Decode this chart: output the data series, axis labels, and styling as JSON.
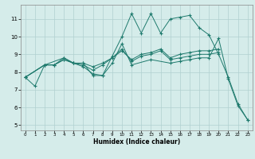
{
  "xlabel": "Humidex (Indice chaleur)",
  "background_color": "#d5ecea",
  "grid_color": "#b0d0d0",
  "line_color": "#1e7a6d",
  "xlim": [
    -0.5,
    23.5
  ],
  "ylim": [
    4.7,
    11.8
  ],
  "xticks": [
    0,
    1,
    2,
    3,
    4,
    5,
    6,
    7,
    8,
    9,
    10,
    11,
    12,
    13,
    14,
    15,
    16,
    17,
    18,
    19,
    20,
    21,
    22,
    23
  ],
  "yticks": [
    5,
    6,
    7,
    8,
    9,
    10,
    11
  ],
  "series1_x": [
    0,
    1,
    2,
    3,
    4,
    5,
    6,
    7,
    8,
    9,
    10,
    11,
    12,
    13,
    14,
    15,
    16,
    17,
    18,
    19,
    20,
    21,
    22,
    23
  ],
  "series1_y": [
    7.7,
    7.2,
    8.4,
    8.4,
    8.7,
    8.5,
    8.5,
    7.8,
    7.8,
    8.9,
    10.0,
    11.3,
    10.2,
    11.3,
    10.2,
    11.0,
    11.1,
    11.2,
    10.5,
    10.1,
    9.0,
    7.7,
    6.2,
    5.3
  ],
  "series2_x": [
    0,
    2,
    3,
    4,
    5,
    6,
    7,
    8,
    9,
    10,
    11,
    12,
    13,
    14,
    15,
    16,
    17,
    18,
    19,
    20
  ],
  "series2_y": [
    7.7,
    8.4,
    8.4,
    8.7,
    8.5,
    8.5,
    8.3,
    8.5,
    8.8,
    9.2,
    8.7,
    9.0,
    9.1,
    9.3,
    8.8,
    9.0,
    9.1,
    9.2,
    9.2,
    9.3
  ],
  "series3_x": [
    0,
    2,
    3,
    4,
    5,
    6,
    7,
    8,
    9,
    10,
    11,
    12,
    13,
    14,
    15,
    16,
    17,
    18,
    19,
    20
  ],
  "series3_y": [
    7.7,
    8.4,
    8.4,
    8.8,
    8.5,
    8.4,
    8.1,
    8.4,
    8.8,
    9.3,
    8.6,
    8.9,
    9.0,
    9.2,
    8.7,
    8.8,
    8.9,
    9.0,
    9.0,
    9.1
  ],
  "series4_x": [
    0,
    2,
    4,
    5,
    6,
    7,
    8,
    9,
    10,
    11,
    13,
    15,
    16,
    17,
    18,
    19,
    20,
    21,
    22,
    23
  ],
  "series4_y": [
    7.7,
    8.4,
    8.8,
    8.5,
    8.3,
    7.9,
    7.8,
    8.5,
    9.6,
    8.4,
    8.7,
    8.5,
    8.6,
    8.7,
    8.8,
    8.8,
    9.9,
    7.6,
    6.1,
    5.3
  ]
}
